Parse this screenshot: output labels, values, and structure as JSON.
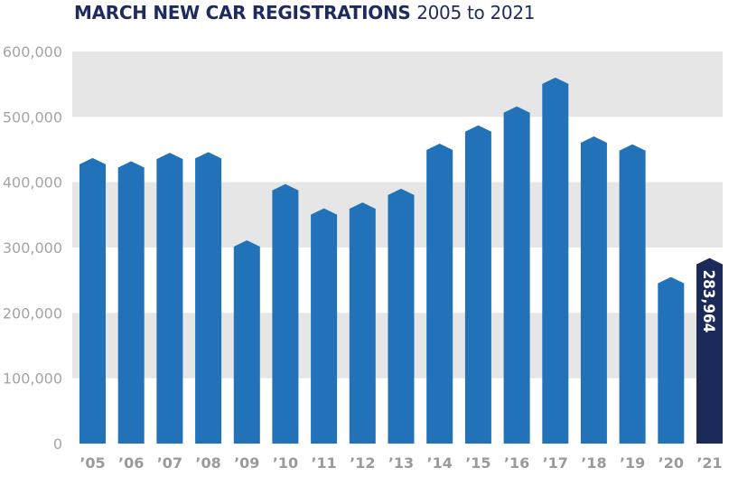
{
  "chart_data": {
    "type": "bar",
    "title": "MARCH NEW CAR REGISTRATIONS",
    "subtitle": "2005 to 2021",
    "categories": [
      "’05",
      "’06",
      "’07",
      "’08",
      "’09",
      "’10",
      "’11",
      "’12",
      "’13",
      "’14",
      "’15",
      "’16",
      "’17",
      "’18",
      "’19",
      "’20",
      "’21"
    ],
    "values": [
      437000,
      432000,
      445000,
      446000,
      311000,
      397000,
      360000,
      369000,
      390000,
      459000,
      487000,
      516000,
      560000,
      470000,
      458000,
      255000,
      283964
    ],
    "highlight_index": 16,
    "highlight_label": "283,964",
    "ylim": [
      0,
      600000
    ],
    "yticks": [
      0,
      100000,
      200000,
      300000,
      400000,
      500000,
      600000
    ],
    "ytick_labels": [
      "0",
      "100,000",
      "200,000",
      "300,000",
      "400,000",
      "500,000",
      "600,000"
    ],
    "xlabel": "",
    "ylabel": "",
    "grid": "alternating horizontal bands",
    "colors": {
      "bar": "#2272b9",
      "highlight": "#1c2a5a",
      "band": "#e6e6e6",
      "title": "#1d2b5e"
    }
  }
}
